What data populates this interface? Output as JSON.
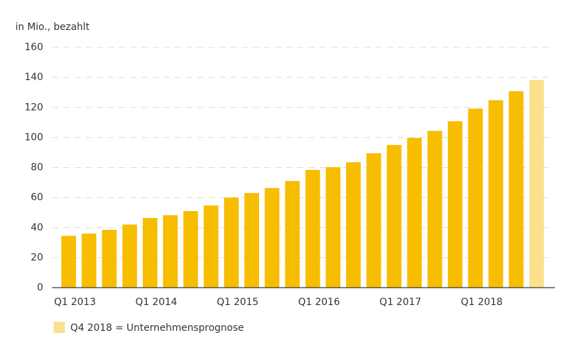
{
  "chart_data": {
    "type": "bar",
    "ylabel": "in Mio., bezahlt",
    "categories": [
      "Q1 2013",
      null,
      null,
      null,
      "Q1 2014",
      null,
      null,
      null,
      "Q1 2015",
      null,
      null,
      null,
      "Q1 2016",
      null,
      null,
      null,
      "Q1 2017",
      null,
      null,
      null,
      "Q1 2018",
      null,
      null,
      null
    ],
    "values": [
      34.5,
      36,
      38.5,
      42,
      46.4,
      48.2,
      51,
      54.7,
      60,
      63,
      66.3,
      71,
      78.4,
      80.2,
      83.5,
      89.5,
      95,
      99.7,
      104.4,
      110.8,
      119.2,
      124.8,
      130.8,
      138.2
    ],
    "colors": [
      "#f7bd00",
      "#f7bd00",
      "#f7bd00",
      "#f7bd00",
      "#f7bd00",
      "#f7bd00",
      "#f7bd00",
      "#f7bd00",
      "#f7bd00",
      "#f7bd00",
      "#f7bd00",
      "#f7bd00",
      "#f7bd00",
      "#f7bd00",
      "#f7bd00",
      "#f7bd00",
      "#f7bd00",
      "#f7bd00",
      "#f7bd00",
      "#f7bd00",
      "#f7bd00",
      "#f7bd00",
      "#f7bd00",
      "#fbe08e"
    ],
    "ylim": [
      0,
      160
    ],
    "yticks": [
      0,
      20,
      40,
      60,
      80,
      100,
      120,
      140,
      160
    ],
    "grid": true,
    "legend": {
      "label": "Q4 2018 = Unternehmensprognose",
      "color": "#fbe08e"
    }
  }
}
